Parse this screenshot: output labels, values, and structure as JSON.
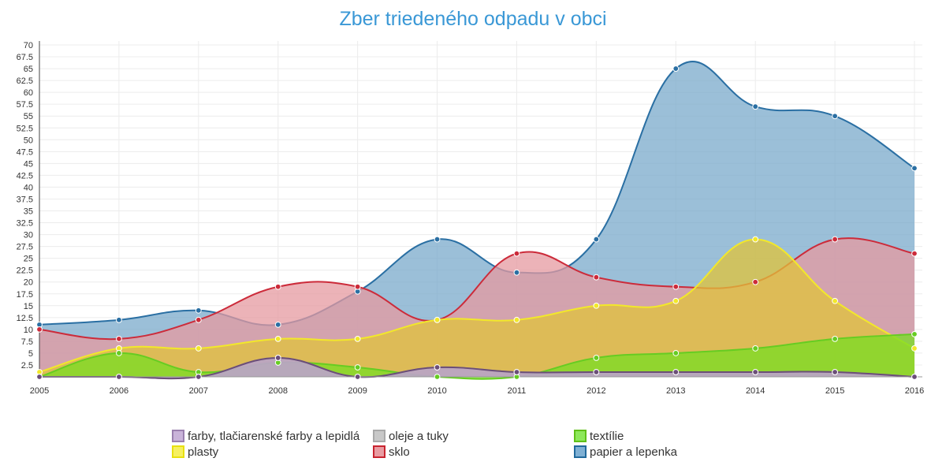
{
  "chart_data": {
    "type": "area",
    "title": "Zber triedeného odpadu v obci",
    "xlabel": "",
    "ylabel": "",
    "x": [
      2005,
      2006,
      2007,
      2008,
      2009,
      2010,
      2011,
      2012,
      2013,
      2014,
      2015,
      2016
    ],
    "x_tick_labels": [
      "2005",
      "2006",
      "2007",
      "2008",
      "2009",
      "2010",
      "2011",
      "2012",
      "2013",
      "2014",
      "2015",
      "2016"
    ],
    "ylim": [
      0,
      70
    ],
    "y_ticks": [
      2.5,
      5,
      7.5,
      10,
      12.5,
      15,
      17.5,
      20,
      22.5,
      25,
      27.5,
      30,
      32.5,
      35,
      37.5,
      40,
      42.5,
      45,
      47.5,
      50,
      52.5,
      55,
      57.5,
      60,
      62.5,
      65,
      67.5,
      70
    ],
    "y_tick_labels": [
      "2.5",
      "5",
      "7.5",
      "10",
      "12.5",
      "15",
      "17.5",
      "20",
      "22.5",
      "25",
      "27.5",
      "30",
      "32.5",
      "35",
      "37.5",
      "40",
      "42.5",
      "45",
      "47.5",
      "50",
      "52.5",
      "55",
      "57.5",
      "60",
      "62.5",
      "65",
      "67.5",
      "70"
    ],
    "grid": true,
    "legend_position": "bottom",
    "series": [
      {
        "name": "papier a lepenka",
        "color": "#2a6fa3",
        "fill": "#7aa9cb",
        "values": [
          11,
          12,
          14,
          11,
          18,
          29,
          22,
          29,
          65,
          57,
          55,
          44
        ]
      },
      {
        "name": "sklo",
        "color": "#cc2b3a",
        "fill": "#e59aa0",
        "values": [
          10,
          8,
          12,
          19,
          19,
          12,
          26,
          21,
          19,
          20,
          29,
          26
        ]
      },
      {
        "name": "plasty",
        "color": "#f2e82a",
        "fill": "#e0c33a",
        "values": [
          1,
          6,
          6,
          8,
          8,
          12,
          12,
          15,
          16,
          29,
          16,
          6
        ]
      },
      {
        "name": "textílie",
        "color": "#66cc22",
        "fill": "#77dd22",
        "values": [
          0,
          5,
          1,
          3,
          2,
          0,
          0,
          4,
          5,
          6,
          8,
          9
        ]
      },
      {
        "name": "oleje a tuky",
        "color": "#a0a0a0",
        "fill": "#c4c4c4",
        "values": [
          0,
          0,
          0,
          4,
          0,
          2,
          1,
          1,
          1,
          1,
          1,
          0
        ]
      },
      {
        "name": "farby, tlačiarenské farby a lepidlá",
        "color": "#6b4e78",
        "fill": "#b79cc4",
        "values": [
          0,
          0,
          0,
          4,
          0,
          2,
          1,
          1,
          1,
          1,
          1,
          0
        ]
      }
    ],
    "legend": [
      {
        "name": "farby, tlačiarenské farby a lepidlá",
        "color": "#9a7fae",
        "fill": "#c9b3d9"
      },
      {
        "name": "oleje a tuky",
        "color": "#a9a9a9",
        "fill": "#c8c8c8"
      },
      {
        "name": "textílie",
        "color": "#5fc018",
        "fill": "#8de85a"
      },
      {
        "name": "plasty",
        "color": "#e8e010",
        "fill": "#f6f060"
      },
      {
        "name": "sklo",
        "color": "#c8232f",
        "fill": "#e89ca2"
      },
      {
        "name": "papier a lepenka",
        "color": "#226a9c",
        "fill": "#7fb0d4"
      }
    ]
  }
}
